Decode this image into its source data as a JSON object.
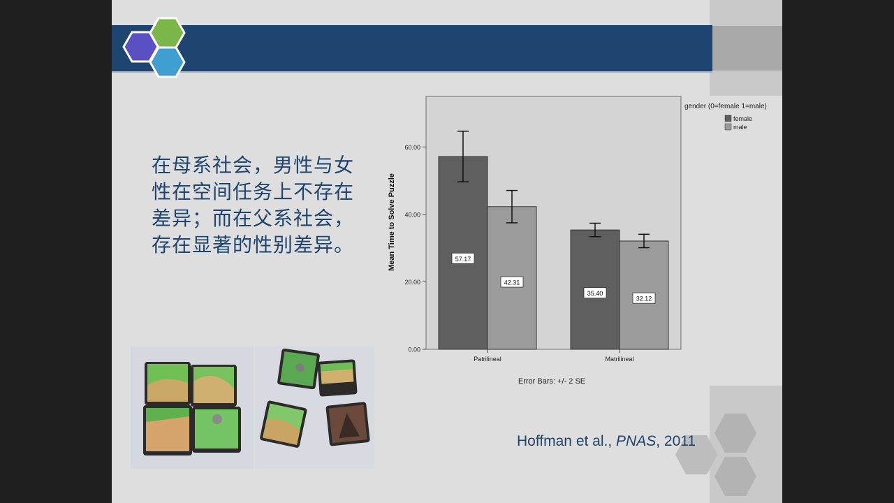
{
  "slide": {
    "body_text": "在母系社会，男性与女性在空间任务上不存在差异；而在父系社会，存在显著的性别差异。",
    "citation": {
      "authors": "Hoffman et al.,",
      "journal": "PNAS",
      "year": ", 2011"
    },
    "colors": {
      "header_band": "#1d4570",
      "body_text": "#1d4570",
      "logo_green": "#7ab648",
      "logo_purple": "#5b4fc4",
      "logo_blue": "#3f9fd0"
    }
  },
  "chart_data": {
    "type": "bar",
    "categories": [
      "Patrilineal",
      "Matrilineal"
    ],
    "series": [
      {
        "name": "female",
        "values": [
          57.17,
          35.4
        ],
        "error": [
          7.5,
          2.0
        ],
        "color": "#5f5f5f"
      },
      {
        "name": "male",
        "values": [
          42.31,
          32.12
        ],
        "error": [
          4.8,
          2.0
        ],
        "color": "#9b9b9b"
      }
    ],
    "data_labels": [
      "57.17",
      "35.40",
      "42.31",
      "32.12"
    ],
    "ylabel": "Mean Time to Solve Puzzle",
    "xlabel": "",
    "yticks": [
      "0.00",
      "20.00",
      "40.00",
      "60.00"
    ],
    "ylim": [
      0,
      75
    ],
    "note": "Error Bars: +/- 2 SE",
    "legend": {
      "title": "gender (0=female 1=male)",
      "placement": "top-right"
    },
    "grid": false
  }
}
